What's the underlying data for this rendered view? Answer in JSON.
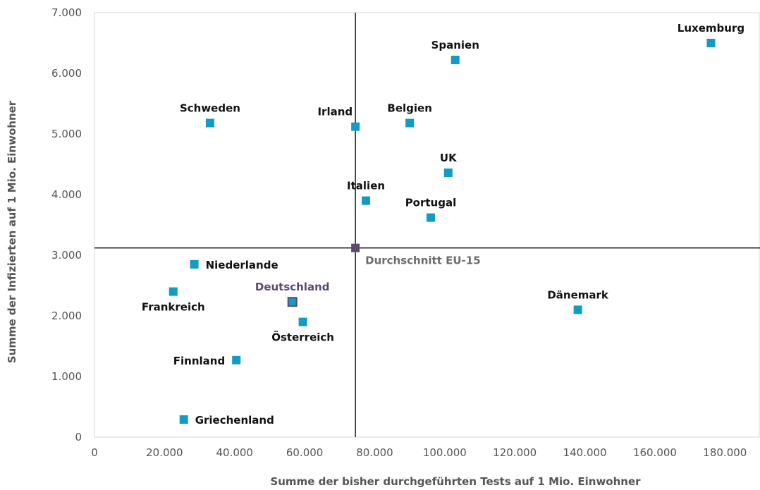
{
  "chart_data": {
    "type": "scatter",
    "xlabel": "Summe der bisher durchgeführten Tests auf 1 Mio. Einwohner",
    "ylabel": "Summe der Infizierten auf 1 Mio. Einwohner",
    "xlim": [
      0,
      190000
    ],
    "ylim": [
      0,
      7000
    ],
    "x_ticks": [
      "0",
      "20.000",
      "40.000",
      "60.000",
      "80.000",
      "100.000",
      "120.000",
      "140.000",
      "160.000",
      "180.000"
    ],
    "x_tick_values": [
      0,
      20000,
      40000,
      60000,
      80000,
      100000,
      120000,
      140000,
      160000,
      180000
    ],
    "y_ticks": [
      "0",
      "1.000",
      "2.000",
      "3.000",
      "4.000",
      "5.000",
      "6.000",
      "7.000"
    ],
    "y_tick_values": [
      0,
      1000,
      2000,
      3000,
      4000,
      5000,
      6000,
      7000
    ],
    "grid": false,
    "reference_lines": {
      "x": 74500,
      "y": 3120
    },
    "colors": {
      "point": "#129bc4",
      "highlight": "#5b4a6e",
      "average": "#5b4a6e",
      "reference_line": "#000000"
    },
    "points": [
      {
        "label": "Luxemburg",
        "x": 176000,
        "y": 6500,
        "label_pos": "above"
      },
      {
        "label": "Spanien",
        "x": 103000,
        "y": 6220,
        "label_pos": "above"
      },
      {
        "label": "Schweden",
        "x": 33000,
        "y": 5180,
        "label_pos": "above"
      },
      {
        "label": "Irland",
        "x": 74500,
        "y": 5120,
        "label_pos": "above-left"
      },
      {
        "label": "Belgien",
        "x": 90000,
        "y": 5180,
        "label_pos": "above"
      },
      {
        "label": "UK",
        "x": 101000,
        "y": 4360,
        "label_pos": "above"
      },
      {
        "label": "Italien",
        "x": 77500,
        "y": 3900,
        "label_pos": "above"
      },
      {
        "label": "Portugal",
        "x": 96000,
        "y": 3620,
        "label_pos": "above"
      },
      {
        "label": "Niederlande",
        "x": 28500,
        "y": 2850,
        "label_pos": "right"
      },
      {
        "label": "Frankreich",
        "x": 22500,
        "y": 2400,
        "label_pos": "below"
      },
      {
        "label": "Deutschland",
        "x": 56500,
        "y": 2230,
        "label_pos": "above",
        "highlight": true
      },
      {
        "label": "Österreich",
        "x": 59500,
        "y": 1900,
        "label_pos": "below"
      },
      {
        "label": "Dänemark",
        "x": 138000,
        "y": 2100,
        "label_pos": "above"
      },
      {
        "label": "Finnland",
        "x": 40500,
        "y": 1270,
        "label_pos": "left"
      },
      {
        "label": "Griechenland",
        "x": 25500,
        "y": 290,
        "label_pos": "right"
      },
      {
        "label": "Durchschnitt EU-15",
        "x": 74500,
        "y": 3120,
        "label_pos": "below-right",
        "average": true
      }
    ]
  }
}
